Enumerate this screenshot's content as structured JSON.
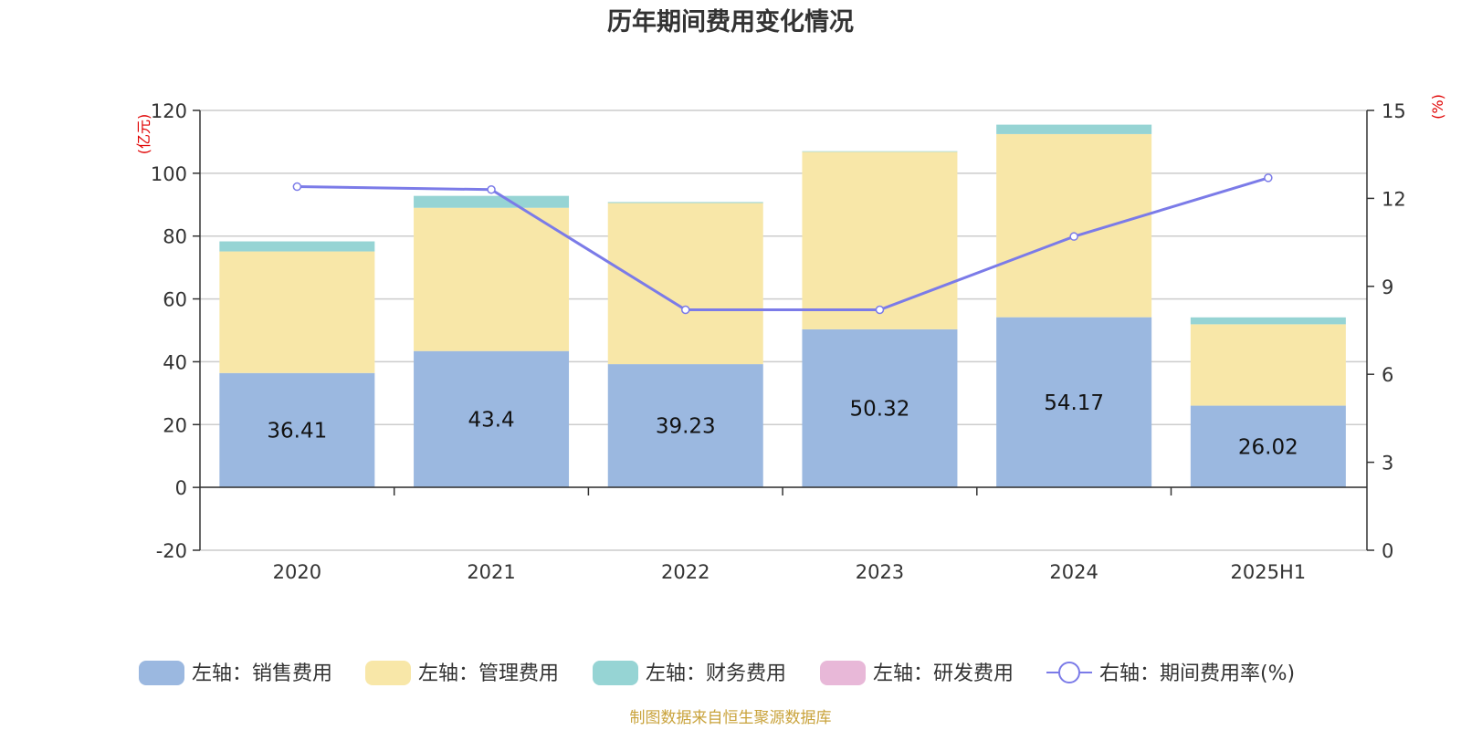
{
  "chart_data": {
    "type": "bar",
    "title": "历年期间费用变化情况",
    "categories": [
      "2020",
      "2021",
      "2022",
      "2023",
      "2024",
      "2025H1"
    ],
    "left_axis": {
      "unit": "(亿元)",
      "ylim": [
        -20,
        120
      ],
      "ticks": [
        120,
        100,
        80,
        60,
        40,
        20,
        0,
        -20
      ]
    },
    "right_axis": {
      "unit": "(%)",
      "ylim": [
        0,
        15
      ],
      "ticks": [
        15,
        12,
        9,
        6,
        3,
        0
      ]
    },
    "series": [
      {
        "name": "左轴：销售费用",
        "type": "bar",
        "axis": "left",
        "color": "#9bb8e0",
        "values": [
          36.41,
          43.4,
          39.23,
          50.32,
          54.17,
          26.02
        ],
        "labels": [
          "36.41",
          "43.4",
          "39.23",
          "50.32",
          "54.17",
          "26.02"
        ]
      },
      {
        "name": "左轴：管理费用",
        "type": "bar",
        "axis": "left",
        "color": "#f8e7a8",
        "values": [
          38.7,
          45.6,
          51.3,
          56.5,
          58.3,
          25.9
        ]
      },
      {
        "name": "左轴：财务费用",
        "type": "bar",
        "axis": "left",
        "color": "#96d4d4",
        "values": [
          3.2,
          3.8,
          0.3,
          0.2,
          3.0,
          2.2
        ]
      },
      {
        "name": "左轴：研发费用",
        "type": "bar",
        "axis": "left",
        "color": "#e8b8d8",
        "values": [
          0,
          0,
          0,
          0,
          0,
          0
        ]
      },
      {
        "name": "右轴：期间费用率(%)",
        "type": "line",
        "axis": "right",
        "color": "#7b7be8",
        "values": [
          12.4,
          12.3,
          8.2,
          8.2,
          10.7,
          12.7
        ]
      }
    ],
    "grid": true,
    "legend_position": "bottom"
  },
  "source_note": "制图数据来自恒生聚源数据库"
}
